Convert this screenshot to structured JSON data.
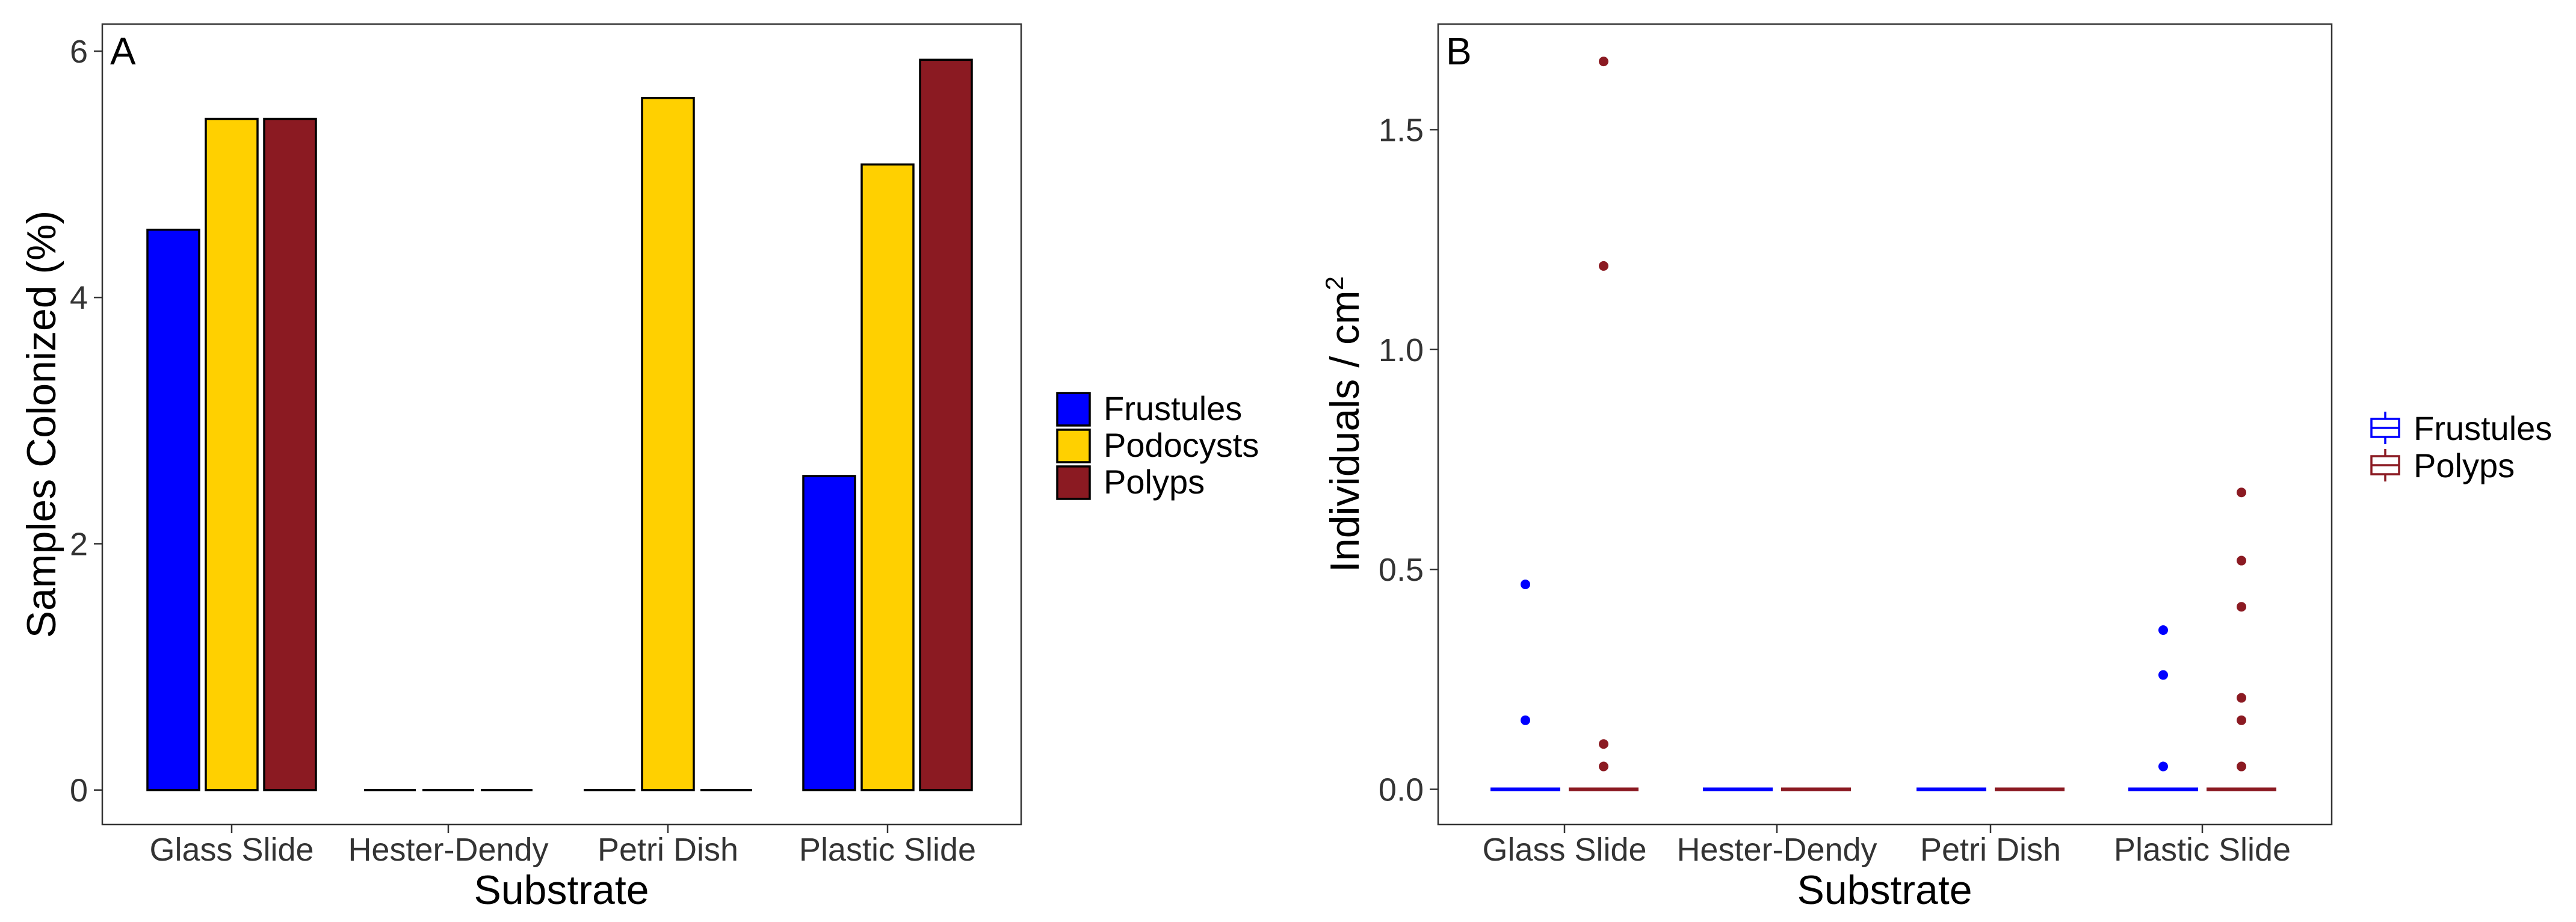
{
  "chart_data": [
    {
      "type": "bar",
      "panel_label": "A",
      "categories": [
        "Glass Slide",
        "Hester-Dendy",
        "Petri Dish",
        "Plastic Slide"
      ],
      "series": [
        {
          "name": "Frustules",
          "values": [
            4.55,
            0,
            0,
            2.55
          ]
        },
        {
          "name": "Podocysts",
          "values": [
            5.45,
            0,
            5.62,
            5.08
          ]
        },
        {
          "name": "Polyps",
          "values": [
            5.45,
            0,
            0,
            5.93
          ]
        }
      ],
      "colors": {
        "Frustules": "#0000ff",
        "Podocysts": "#ffd000",
        "Polyps": "#8b1a22"
      },
      "xlabel": "Substrate",
      "ylabel": "Samples Colonized (%)",
      "ylim": [
        -0.28,
        6.22
      ],
      "yticks": [
        "0",
        "2",
        "4",
        "6"
      ],
      "grid": false,
      "legend": {
        "position": "right",
        "entries": [
          "Frustules",
          "Podocysts",
          "Polyps"
        ]
      }
    },
    {
      "type": "box",
      "panel_label": "B",
      "categories": [
        "Glass Slide",
        "Hester-Dendy",
        "Petri Dish",
        "Plastic Slide"
      ],
      "series": [
        {
          "name": "Frustules",
          "medians": [
            0,
            0,
            0,
            0
          ],
          "outliers": [
            [
              0.466,
              0.157
            ],
            [],
            [],
            [
              0.362,
              0.26,
              0.052
            ]
          ]
        },
        {
          "name": "Polyps",
          "medians": [
            0,
            0,
            0,
            0
          ],
          "outliers": [
            [
              1.655,
              1.19,
              0.103,
              0.052
            ],
            [],
            [],
            [
              0.675,
              0.52,
              0.415,
              0.208,
              0.157,
              0.052
            ]
          ]
        }
      ],
      "colors": {
        "Frustules": "#0000ff",
        "Polyps": "#8b1a22"
      },
      "xlabel": "Substrate",
      "ylabel": "Individuals / cm",
      "ylabel_superscript": "2",
      "ylim": [
        -0.08,
        1.74
      ],
      "yticks": [
        "0.0",
        "0.5",
        "1.0",
        "1.5"
      ],
      "grid": false,
      "legend": {
        "position": "right",
        "entries": [
          "Frustules",
          "Polyps"
        ]
      }
    }
  ]
}
